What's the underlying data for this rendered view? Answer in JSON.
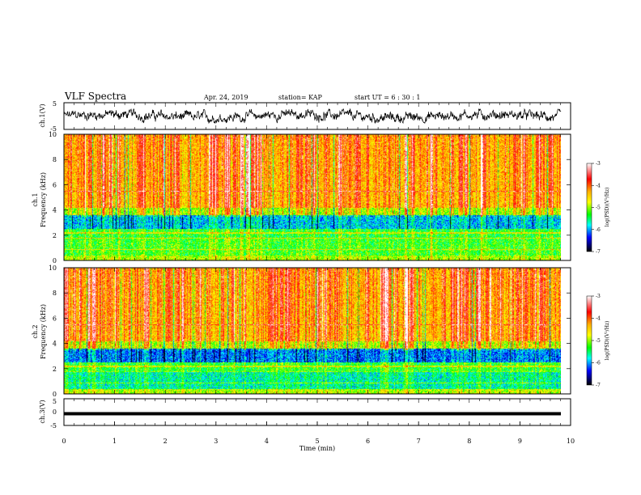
{
  "header": {
    "title": "VLF Spectra",
    "date": "Apr. 24, 2019",
    "station": "station= KAP",
    "start": "start  UT  =   6  : 30 : 1"
  },
  "chart_data": [
    {
      "type": "line",
      "ylabel": "ch.1(V)",
      "ylim": [
        -5,
        5
      ],
      "yticks": [
        "5",
        "-5"
      ],
      "xlim": [
        0,
        10
      ],
      "color": "#000000",
      "description_of_values": "noisy waveform oscillating roughly between -2.5 V and 2.5 V"
    },
    {
      "type": "heatmap",
      "ylabel": "ch.1\nFrequency (kHz)",
      "ylabel_lines": [
        "ch.1",
        "Frequency (kHz)"
      ],
      "ylim": [
        0,
        10
      ],
      "yticks": [
        "0",
        "2",
        "4",
        "6",
        "8",
        "10"
      ],
      "xlim": [
        0,
        10
      ],
      "colorbar": {
        "label": "log(PSD)(V²/Hz)",
        "range": [
          -7,
          -3
        ],
        "ticks": [
          "-3",
          "-4",
          "-5",
          "-6",
          "-7"
        ],
        "colors": [
          "#ffffff",
          "#ff0000",
          "#ffb000",
          "#ffff00",
          "#00ff00",
          "#00ffff",
          "#0000ff",
          "#000000"
        ]
      }
    },
    {
      "type": "heatmap",
      "ylabel": "ch.2\nFrequency (kHz)",
      "ylabel_lines": [
        "ch.2",
        "Frequency (kHz)"
      ],
      "ylim": [
        0,
        10
      ],
      "yticks": [
        "0",
        "2",
        "4",
        "6",
        "8",
        "10"
      ],
      "xlim": [
        0,
        10
      ],
      "colorbar": {
        "label": "log(PSD)(V²/Hz)",
        "range": [
          -7,
          -3
        ],
        "ticks": [
          "-3",
          "-4",
          "-5",
          "-6",
          "-7"
        ],
        "colors": [
          "#ffffff",
          "#ff0000",
          "#ffb000",
          "#ffff00",
          "#00ff00",
          "#00ffff",
          "#0000ff",
          "#000000"
        ]
      }
    },
    {
      "type": "line",
      "ylabel": "ch.3(V)",
      "ylim": [
        -5,
        5
      ],
      "yticks": [
        "5",
        "0",
        "-5"
      ],
      "xlim": [
        0,
        10
      ],
      "xlabel": "Time  (min)",
      "xticks": [
        "0",
        "1",
        "2",
        "3",
        "4",
        "5",
        "6",
        "7",
        "8",
        "9",
        "10"
      ],
      "color": "#000000",
      "constant_value": -1.5
    }
  ]
}
